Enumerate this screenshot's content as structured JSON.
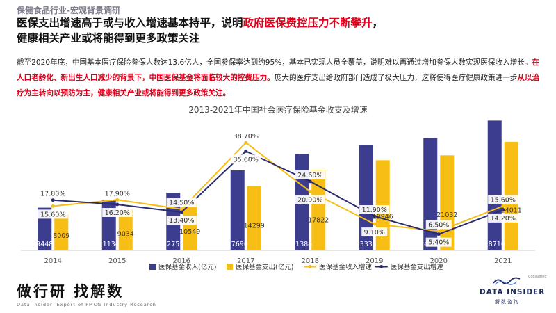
{
  "header": {
    "kicker": "保健食品行业-宏观背景调研",
    "headline_part1": "医保支出增速高于或与收入增速基本持平，说明",
    "headline_highlight": "政府医保费控压力不断攀升",
    "headline_part2": "，",
    "headline_line2": "健康相关产业或将能得到更多政策关注"
  },
  "body": {
    "p1": "截至2020年底，中国基本医疗保险参保人数达13.6亿人，全国参保率达到约95%，基本已实现人员全覆盖，说明难以再通过增加参保人数实现医保收入增长。",
    "p2_red": "在人口老龄化、新出生人口减少的背景下，中国医保基金将面临较大的控费压力。",
    "p3": "庞大的医疗支出给政府部门造成了极大压力，这将使得医疗健康政策进一步",
    "p4_red": "从以治疗为主转向以预防为主，健康相关产业或将能得到更多政策关注。"
  },
  "chart_data": {
    "type": "bar",
    "title": "2013-2021年中国社会医疗保险基金收支及增速",
    "categories": [
      "2014",
      "2015",
      "2016",
      "2017",
      "2018",
      "2019",
      "2020",
      "2021"
    ],
    "series": [
      {
        "name": "医保基金收入(亿元)",
        "kind": "bar",
        "color": "#3d3d8f",
        "values": [
          9448,
          11134,
          12751,
          17690,
          21384,
          23335,
          24846,
          28710
        ]
      },
      {
        "name": "医保基金支出(亿元)",
        "kind": "bar",
        "color": "#f7be16",
        "values": [
          8009,
          9034,
          10549,
          14299,
          17822,
          19946,
          21032,
          24011
        ]
      },
      {
        "name": "医保基金收入增速",
        "kind": "line",
        "color": "#f7be16",
        "unit": "%",
        "values": [
          15.6,
          17.9,
          14.5,
          38.7,
          20.9,
          9.1,
          6.5,
          15.6
        ]
      },
      {
        "name": "医保基金支出增速",
        "kind": "line",
        "color": "#2b2b6e",
        "unit": "%",
        "values": [
          17.8,
          16.2,
          13.4,
          35.6,
          24.6,
          11.9,
          5.4,
          14.2
        ]
      }
    ],
    "grid": false,
    "legend_position": "bottom"
  },
  "footer": {
    "brand_cn": "做行研 找解数",
    "tagline": "Data Insider- Expert of FMCG Industry Research",
    "consulting": "Consulting",
    "logo_text": "DATA INSIDER",
    "logo_cn": "解数咨询"
  }
}
